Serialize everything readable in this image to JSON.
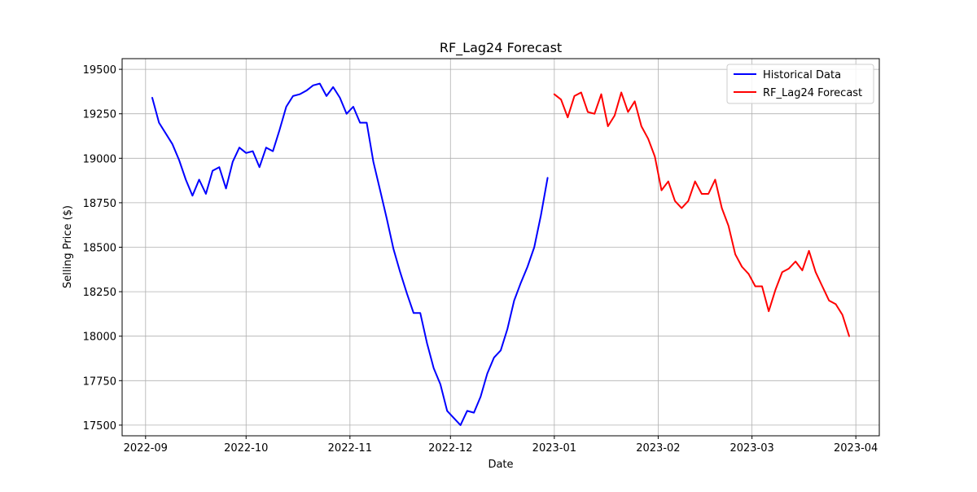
{
  "chart_data": {
    "type": "line",
    "title": "RF_Lag24 Forecast",
    "xlabel": "Date",
    "ylabel": "Selling Price ($)",
    "x_type": "date",
    "xlim": [
      "2022-08-25",
      "2023-04-08"
    ],
    "ylim": [
      17440,
      19560
    ],
    "grid": true,
    "legend_position": "top-right",
    "x_ticks": [
      "2022-09-01",
      "2022-10-01",
      "2022-11-01",
      "2022-12-01",
      "2023-01-01",
      "2023-02-01",
      "2023-03-01",
      "2023-04-01"
    ],
    "x_tick_labels": [
      "2022-09",
      "2022-10",
      "2022-11",
      "2022-12",
      "2023-01",
      "2023-02",
      "2023-03",
      "2023-04"
    ],
    "y_ticks": [
      17500,
      17750,
      18000,
      18250,
      18500,
      18750,
      19000,
      19250,
      19500
    ],
    "y_tick_labels": [
      "17500",
      "17750",
      "18000",
      "18250",
      "18500",
      "18750",
      "19000",
      "19250",
      "19500"
    ],
    "series": [
      {
        "name": "Historical Data",
        "color": "#0000ff",
        "x": [
          "2022-09-03",
          "2022-09-05",
          "2022-09-07",
          "2022-09-09",
          "2022-09-11",
          "2022-09-13",
          "2022-09-15",
          "2022-09-17",
          "2022-09-19",
          "2022-09-21",
          "2022-09-23",
          "2022-09-25",
          "2022-09-27",
          "2022-09-29",
          "2022-10-01",
          "2022-10-03",
          "2022-10-05",
          "2022-10-07",
          "2022-10-09",
          "2022-10-11",
          "2022-10-13",
          "2022-10-15",
          "2022-10-17",
          "2022-10-19",
          "2022-10-21",
          "2022-10-23",
          "2022-10-25",
          "2022-10-27",
          "2022-10-29",
          "2022-10-31",
          "2022-11-02",
          "2022-11-04",
          "2022-11-06",
          "2022-11-08",
          "2022-11-10",
          "2022-11-12",
          "2022-11-14",
          "2022-11-16",
          "2022-11-18",
          "2022-11-20",
          "2022-11-22",
          "2022-11-24",
          "2022-11-26",
          "2022-11-28",
          "2022-11-30",
          "2022-12-02",
          "2022-12-04",
          "2022-12-06",
          "2022-12-08",
          "2022-12-10",
          "2022-12-12",
          "2022-12-14",
          "2022-12-16",
          "2022-12-18",
          "2022-12-20",
          "2022-12-22",
          "2022-12-24",
          "2022-12-26",
          "2022-12-28",
          "2022-12-30"
        ],
        "values": [
          19340,
          19200,
          19140,
          19080,
          18990,
          18880,
          18790,
          18880,
          18800,
          18930,
          18950,
          18830,
          18980,
          19060,
          19030,
          19040,
          18950,
          19060,
          19040,
          19160,
          19290,
          19350,
          19360,
          19380,
          19410,
          19420,
          19350,
          19400,
          19340,
          19250,
          19290,
          19200,
          19200,
          18980,
          18820,
          18660,
          18490,
          18360,
          18240,
          18130,
          18130,
          17960,
          17820,
          17730,
          17580,
          17540,
          17500,
          17580,
          17570,
          17660,
          17790,
          17880,
          17920,
          18040,
          18200,
          18300,
          18390,
          18500,
          18680,
          18890
        ]
      },
      {
        "name": "RF_Lag24 Forecast",
        "color": "#ff0000",
        "x": [
          "2023-01-01",
          "2023-01-03",
          "2023-01-05",
          "2023-01-07",
          "2023-01-09",
          "2023-01-11",
          "2023-01-13",
          "2023-01-15",
          "2023-01-17",
          "2023-01-19",
          "2023-01-21",
          "2023-01-23",
          "2023-01-25",
          "2023-01-27",
          "2023-01-29",
          "2023-01-31",
          "2023-02-02",
          "2023-02-04",
          "2023-02-06",
          "2023-02-08",
          "2023-02-10",
          "2023-02-12",
          "2023-02-14",
          "2023-02-16",
          "2023-02-18",
          "2023-02-20",
          "2023-02-22",
          "2023-02-24",
          "2023-02-26",
          "2023-02-28",
          "2023-03-02",
          "2023-03-04",
          "2023-03-06",
          "2023-03-08",
          "2023-03-10",
          "2023-03-12",
          "2023-03-14",
          "2023-03-16",
          "2023-03-18",
          "2023-03-20",
          "2023-03-22",
          "2023-03-24",
          "2023-03-26",
          "2023-03-28",
          "2023-03-30"
        ],
        "values": [
          19360,
          19330,
          19230,
          19350,
          19370,
          19260,
          19250,
          19360,
          19180,
          19240,
          19370,
          19260,
          19320,
          19180,
          19110,
          19010,
          18820,
          18870,
          18760,
          18720,
          18760,
          18870,
          18800,
          18800,
          18880,
          18720,
          18620,
          18460,
          18390,
          18350,
          18280,
          18280,
          18140,
          18260,
          18360,
          18380,
          18420,
          18370,
          18480,
          18360,
          18280,
          18200,
          18180,
          18120,
          18000
        ]
      }
    ]
  }
}
